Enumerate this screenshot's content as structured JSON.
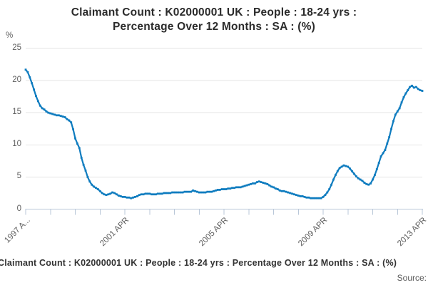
{
  "title": {
    "line1": "Claimant Count : K02000001 UK : People : 18-24 yrs :",
    "line2": "Percentage Over 12 Months : SA : (%)"
  },
  "y_axis_unit": "%",
  "footer": {
    "legend": "Claimant Count : K02000001 UK : People : 18-24 yrs : Percentage Over 12 Months : SA : (%)",
    "source_label": "Source:"
  },
  "colors": {
    "line": "#0f7cbf",
    "grid": "#e4e4e4",
    "axis": "#b9c7d8",
    "tick_text": "#5f5f5f",
    "title_text": "#2b2b2b",
    "legend_text": "#333333"
  },
  "chart_data": {
    "type": "line",
    "title": "Claimant Count : K02000001 UK : People : 18-24 yrs : Percentage Over 12 Months : SA : (%)",
    "ylabel": "%",
    "ylim": [
      0,
      25
    ],
    "y_ticks": [
      0,
      5,
      10,
      15,
      20,
      25
    ],
    "x_start": "1997-04",
    "x_end": "2013-04",
    "frequency": "monthly",
    "x_tick_labels": [
      "1997 A...",
      "2001 APR",
      "2005 APR",
      "2009 APR",
      "2013 APR"
    ],
    "x_major_label_positions": [
      0,
      4,
      8,
      12,
      16
    ],
    "x_minor_ticks": 17,
    "grid": "horizontal only",
    "legend_position": "below chart",
    "marker": "square",
    "series": [
      {
        "name": "Claimant Count : K02000001 UK : People : 18-24 yrs : Percentage Over 12 Months : SA : (%)",
        "values": [
          21.7,
          21.3,
          20.5,
          19.6,
          18.6,
          17.6,
          16.8,
          16.1,
          15.7,
          15.5,
          15.2,
          15.0,
          14.9,
          14.8,
          14.7,
          14.6,
          14.6,
          14.5,
          14.4,
          14.3,
          14.0,
          13.8,
          13.5,
          12.4,
          11.0,
          10.2,
          9.5,
          8.0,
          6.9,
          6.0,
          5.0,
          4.3,
          3.8,
          3.5,
          3.3,
          3.1,
          2.8,
          2.5,
          2.3,
          2.2,
          2.3,
          2.4,
          2.6,
          2.5,
          2.3,
          2.1,
          2.0,
          1.9,
          1.9,
          1.8,
          1.8,
          1.7,
          1.8,
          1.9,
          2.0,
          2.2,
          2.3,
          2.3,
          2.4,
          2.4,
          2.4,
          2.3,
          2.3,
          2.3,
          2.4,
          2.4,
          2.4,
          2.5,
          2.5,
          2.5,
          2.5,
          2.6,
          2.6,
          2.6,
          2.6,
          2.6,
          2.6,
          2.7,
          2.7,
          2.7,
          2.7,
          2.9,
          2.8,
          2.7,
          2.6,
          2.6,
          2.6,
          2.6,
          2.7,
          2.7,
          2.7,
          2.8,
          2.9,
          3.0,
          3.0,
          3.1,
          3.1,
          3.1,
          3.2,
          3.2,
          3.3,
          3.3,
          3.4,
          3.4,
          3.4,
          3.5,
          3.6,
          3.7,
          3.8,
          3.9,
          4.0,
          4.0,
          4.2,
          4.3,
          4.2,
          4.1,
          4.0,
          3.9,
          3.7,
          3.5,
          3.4,
          3.2,
          3.1,
          2.9,
          2.8,
          2.8,
          2.7,
          2.6,
          2.5,
          2.4,
          2.3,
          2.2,
          2.1,
          2.0,
          2.0,
          1.9,
          1.8,
          1.8,
          1.7,
          1.7,
          1.7,
          1.7,
          1.7,
          1.7,
          1.9,
          2.2,
          2.6,
          3.1,
          3.8,
          4.6,
          5.3,
          5.9,
          6.4,
          6.6,
          6.8,
          6.7,
          6.6,
          6.3,
          5.9,
          5.5,
          5.1,
          4.8,
          4.6,
          4.4,
          4.1,
          3.9,
          3.8,
          4.0,
          4.6,
          5.3,
          6.2,
          7.2,
          8.2,
          8.7,
          9.2,
          10.2,
          11.2,
          12.5,
          13.7,
          14.7,
          15.2,
          15.7,
          16.6,
          17.4,
          18.0,
          18.5,
          19.0,
          19.2,
          18.9,
          19.0,
          18.7,
          18.5,
          18.4
        ]
      }
    ]
  }
}
